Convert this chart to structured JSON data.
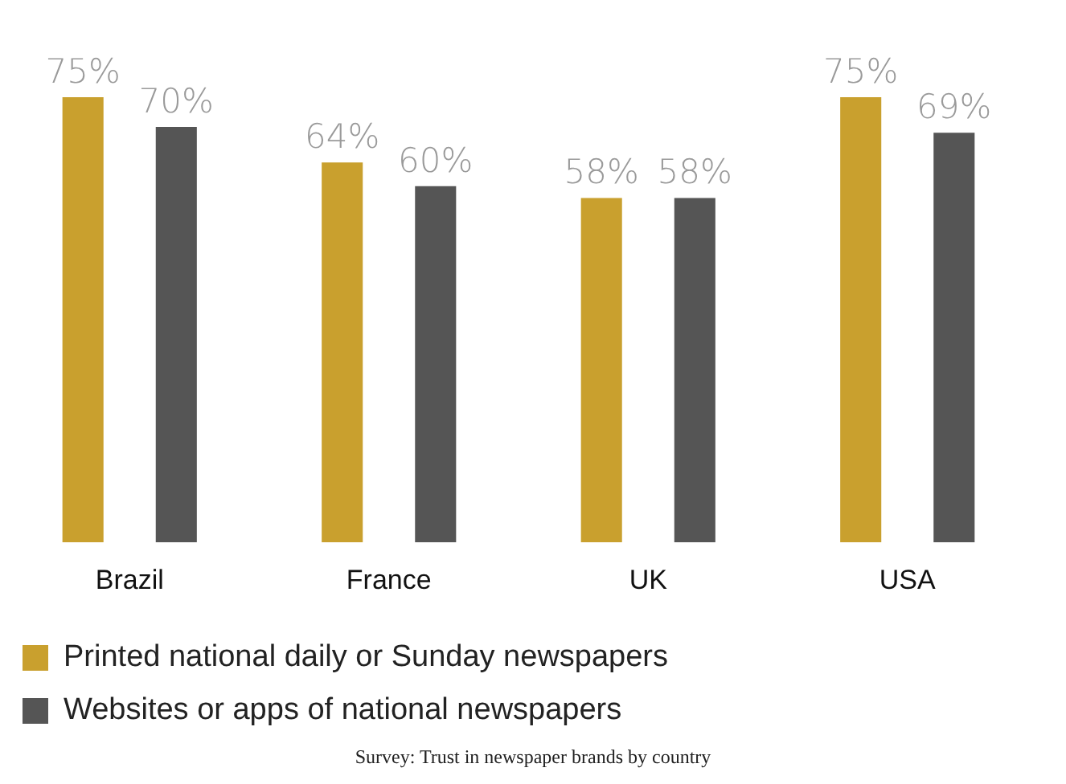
{
  "chart_data": {
    "type": "bar",
    "categories": [
      "Brazil",
      "France",
      "UK",
      "USA"
    ],
    "series": [
      {
        "name": "Printed national daily or Sunday newspapers",
        "color": "#c9a02e",
        "values": [
          75,
          64,
          58,
          75
        ],
        "value_labels": [
          "75%",
          "64%",
          "58%",
          "75%"
        ]
      },
      {
        "name": "Websites or apps of national newspapers",
        "color": "#555555",
        "values": [
          70,
          60,
          58,
          69
        ],
        "value_labels": [
          "70%",
          "60%",
          "58%",
          "69%"
        ]
      }
    ],
    "legend": "bottom",
    "grid": false,
    "annotations": [
      "Survey: Trust in newspaper brands by country"
    ]
  }
}
